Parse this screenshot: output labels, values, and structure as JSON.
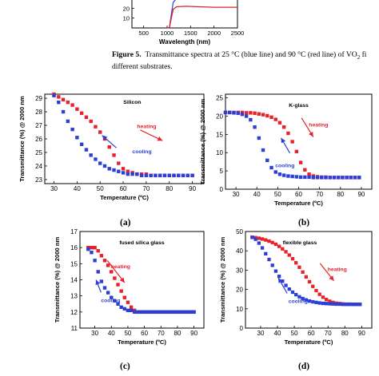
{
  "caption": {
    "label": "Figure 5.",
    "text_line1": "Transmittance spectra at 25 °C (blue line) and 90 °C (red line) of VO",
    "sub": "2",
    "text_line1_tail": " fi",
    "text_line2": "different substrates."
  },
  "colors": {
    "heating": "#e8222b",
    "cooling": "#2b3fd6",
    "spectrum_25": "#3355dd",
    "spectrum_90": "#e02020"
  },
  "chart_data": [
    {
      "id": "top",
      "type": "line",
      "xlabel": "Wavelength (nm)",
      "ylabel": "",
      "xlim": [
        250,
        2500
      ],
      "ylim": [
        0,
        30
      ],
      "x_ticks": [
        500,
        1000,
        1500,
        2000,
        2500
      ],
      "y_ticks": [
        10,
        20
      ],
      "series": [
        {
          "color": "#3355dd",
          "x": [
            1000,
            1050,
            1090,
            1130,
            1200,
            1400,
            1700,
            2000,
            2300,
            2500
          ],
          "y": [
            0,
            0.5,
            14,
            26,
            30,
            31,
            30.5,
            30,
            29.5,
            29.5
          ]
        },
        {
          "color": "#e02020",
          "x": [
            1000,
            1050,
            1090,
            1130,
            1200,
            1400,
            1700,
            2000,
            2300,
            2500
          ],
          "y": [
            0,
            0.5,
            10,
            19,
            21.5,
            22,
            21.5,
            21,
            21,
            21
          ]
        }
      ]
    },
    {
      "id": "a",
      "type": "scatter",
      "panel_label": "(a)",
      "inset": "Silicon",
      "xlabel": "Temperature (ºC)",
      "ylabel": "Transmittance (%) @ 2000 nm",
      "xlim": [
        26,
        95
      ],
      "ylim": [
        22.7,
        29.3
      ],
      "x_ticks": [
        30,
        40,
        50,
        60,
        70,
        80,
        90
      ],
      "y_ticks": [
        23,
        24,
        25,
        26,
        27,
        28,
        29
      ],
      "heating_label": "heating",
      "cooling_label": "cooling",
      "series": [
        {
          "name": "heating",
          "x": [
            30,
            32,
            34,
            36,
            38,
            40,
            42,
            44,
            46,
            48,
            50,
            52,
            54,
            56,
            58,
            60,
            62,
            64,
            66,
            68,
            70,
            72,
            74,
            76,
            78,
            80,
            82,
            84,
            86,
            88,
            90
          ],
          "y": [
            29.3,
            29.1,
            28.9,
            28.7,
            28.5,
            28.2,
            27.9,
            27.6,
            27.3,
            26.9,
            26.5,
            26.0,
            25.4,
            24.8,
            24.2,
            23.8,
            23.6,
            23.5,
            23.4,
            23.4,
            23.4,
            23.3,
            23.3,
            23.3,
            23.3,
            23.3,
            23.3,
            23.3,
            23.3,
            23.3,
            23.3
          ]
        },
        {
          "name": "cooling",
          "x": [
            30,
            32,
            34,
            36,
            38,
            40,
            42,
            44,
            46,
            48,
            50,
            52,
            54,
            56,
            58,
            60,
            62,
            64,
            66,
            68,
            70,
            72,
            74,
            76,
            78,
            80,
            82,
            84,
            86,
            88,
            90
          ],
          "y": [
            29.2,
            28.7,
            28.0,
            27.3,
            26.7,
            26.1,
            25.6,
            25.2,
            24.8,
            24.5,
            24.2,
            24.0,
            23.8,
            23.7,
            23.6,
            23.5,
            23.4,
            23.4,
            23.4,
            23.3,
            23.3,
            23.3,
            23.3,
            23.3,
            23.3,
            23.3,
            23.3,
            23.3,
            23.3,
            23.3,
            23.3
          ]
        }
      ]
    },
    {
      "id": "b",
      "type": "scatter",
      "panel_label": "(b)",
      "inset": "K-glass",
      "xlabel": "Temperature (ºC)",
      "ylabel": "Transmittance (%) @ 2000 nm",
      "xlim": [
        25,
        95
      ],
      "ylim": [
        0,
        26
      ],
      "x_ticks": [
        30,
        40,
        50,
        60,
        70,
        80,
        90
      ],
      "y_ticks": [
        0,
        5,
        10,
        15,
        20,
        25
      ],
      "heating_label": "heating",
      "cooling_label": "cooling",
      "series": [
        {
          "name": "heating",
          "x": [
            25,
            27,
            29,
            31,
            33,
            35,
            37,
            39,
            41,
            43,
            45,
            47,
            49,
            51,
            53,
            55,
            57,
            59,
            61,
            63,
            65,
            67,
            69,
            71,
            73,
            75,
            77,
            79,
            81,
            83,
            85,
            87,
            89
          ],
          "y": [
            21,
            21,
            21,
            21,
            21,
            20.9,
            20.9,
            20.8,
            20.6,
            20.4,
            20.1,
            19.7,
            19.1,
            18.2,
            17,
            15.3,
            13,
            10.3,
            7.3,
            5.3,
            4.1,
            3.6,
            3.4,
            3.3,
            3.3,
            3.2,
            3.2,
            3.2,
            3.2,
            3.2,
            3.2,
            3.2,
            3.2
          ]
        },
        {
          "name": "cooling",
          "x": [
            25,
            27,
            29,
            31,
            33,
            35,
            37,
            39,
            41,
            43,
            45,
            47,
            49,
            51,
            53,
            55,
            57,
            59,
            61,
            63,
            65,
            67,
            69,
            71,
            73,
            75,
            77,
            79,
            81,
            83,
            85,
            87,
            89
          ],
          "y": [
            21,
            21,
            20.9,
            20.8,
            20.5,
            20,
            19,
            17,
            14,
            10.7,
            7.9,
            5.9,
            4.7,
            4.1,
            3.8,
            3.6,
            3.5,
            3.4,
            3.3,
            3.3,
            3.3,
            3.2,
            3.2,
            3.2,
            3.2,
            3.2,
            3.2,
            3.2,
            3.2,
            3.2,
            3.2,
            3.2,
            3.2
          ]
        }
      ]
    },
    {
      "id": "c",
      "type": "scatter",
      "panel_label": "(c)",
      "inset": "fused silica glass",
      "xlabel": "Temperature (ºC)",
      "ylabel": "Transmittance (%) @ 2000 nm",
      "xlim": [
        21,
        96
      ],
      "ylim": [
        11,
        17
      ],
      "x_ticks": [
        30,
        40,
        50,
        60,
        70,
        80,
        90
      ],
      "y_ticks": [
        11,
        12,
        13,
        14,
        15,
        16,
        17
      ],
      "heating_label": "heating",
      "cooling_label": "cooling",
      "series": [
        {
          "name": "heating",
          "x": [
            26,
            28,
            30,
            32,
            34,
            36,
            38,
            40,
            42,
            44,
            46,
            48,
            50,
            52,
            54,
            56,
            58,
            60,
            62,
            64,
            66,
            68,
            70,
            72,
            74,
            76,
            78,
            80,
            82,
            84,
            86,
            88,
            90
          ],
          "y": [
            16,
            16,
            16,
            15.8,
            15.5,
            15.2,
            14.9,
            14.5,
            14.1,
            13.7,
            13.3,
            12.9,
            12.6,
            12.3,
            12.1,
            12.0,
            12.0,
            12.0,
            12,
            12,
            12,
            12,
            12,
            12,
            12,
            12,
            12,
            12,
            12,
            12,
            12,
            12,
            12
          ]
        },
        {
          "name": "cooling",
          "x": [
            26,
            28,
            30,
            32,
            34,
            36,
            38,
            40,
            42,
            44,
            46,
            48,
            50,
            52,
            54,
            56,
            58,
            60,
            62,
            64,
            66,
            68,
            70,
            72,
            74,
            76,
            78,
            80,
            82,
            84,
            86,
            88,
            90
          ],
          "y": [
            15.9,
            15.7,
            15.2,
            14.5,
            13.9,
            13.5,
            13.2,
            12.9,
            12.7,
            12.5,
            12.3,
            12.2,
            12.1,
            12.1,
            12.0,
            12.0,
            12.0,
            12.0,
            12,
            12,
            12,
            12,
            12,
            12,
            12,
            12,
            12,
            12,
            12,
            12,
            12,
            12,
            12
          ]
        }
      ]
    },
    {
      "id": "d",
      "type": "scatter",
      "panel_label": "(d)",
      "inset": "flexible glass",
      "xlabel": "Temperature (ºC)",
      "ylabel": "Transmittance (%) @ 2000 nm",
      "xlim": [
        21,
        96
      ],
      "ylim": [
        0,
        50
      ],
      "x_ticks": [
        30,
        40,
        50,
        60,
        70,
        80,
        90
      ],
      "y_ticks": [
        0,
        10,
        20,
        30,
        40,
        50
      ],
      "heating_label": "heating",
      "cooling_label": "cooling",
      "series": [
        {
          "name": "heating",
          "x": [
            25,
            27,
            29,
            31,
            33,
            35,
            37,
            39,
            41,
            43,
            45,
            47,
            49,
            51,
            53,
            55,
            57,
            59,
            61,
            63,
            65,
            67,
            69,
            71,
            73,
            75,
            77,
            79,
            81,
            83,
            85,
            87,
            89
          ],
          "y": [
            47,
            46.8,
            46.5,
            46.1,
            45.6,
            45,
            44.3,
            43.4,
            42.3,
            41,
            39.5,
            37.8,
            35.9,
            33.8,
            31.5,
            29,
            26.5,
            24,
            21.6,
            19.4,
            17.5,
            16,
            14.8,
            13.9,
            13.3,
            12.9,
            12.7,
            12.5,
            12.4,
            12.4,
            12.3,
            12.3,
            12.3
          ]
        },
        {
          "name": "cooling",
          "x": [
            25,
            27,
            29,
            31,
            33,
            35,
            37,
            39,
            41,
            43,
            45,
            47,
            49,
            51,
            53,
            55,
            57,
            59,
            61,
            63,
            65,
            67,
            69,
            71,
            73,
            75,
            77,
            79,
            81,
            83,
            85,
            87,
            89
          ],
          "y": [
            47,
            46,
            44,
            41.5,
            38.5,
            35.5,
            32.5,
            29.5,
            26.8,
            24.3,
            22.1,
            20.2,
            18.6,
            17.3,
            16.2,
            15.3,
            14.6,
            14,
            13.6,
            13.3,
            13,
            12.8,
            12.7,
            12.6,
            12.5,
            12.4,
            12.4,
            12.3,
            12.3,
            12.3,
            12.3,
            12.3,
            12.3
          ]
        }
      ]
    }
  ]
}
